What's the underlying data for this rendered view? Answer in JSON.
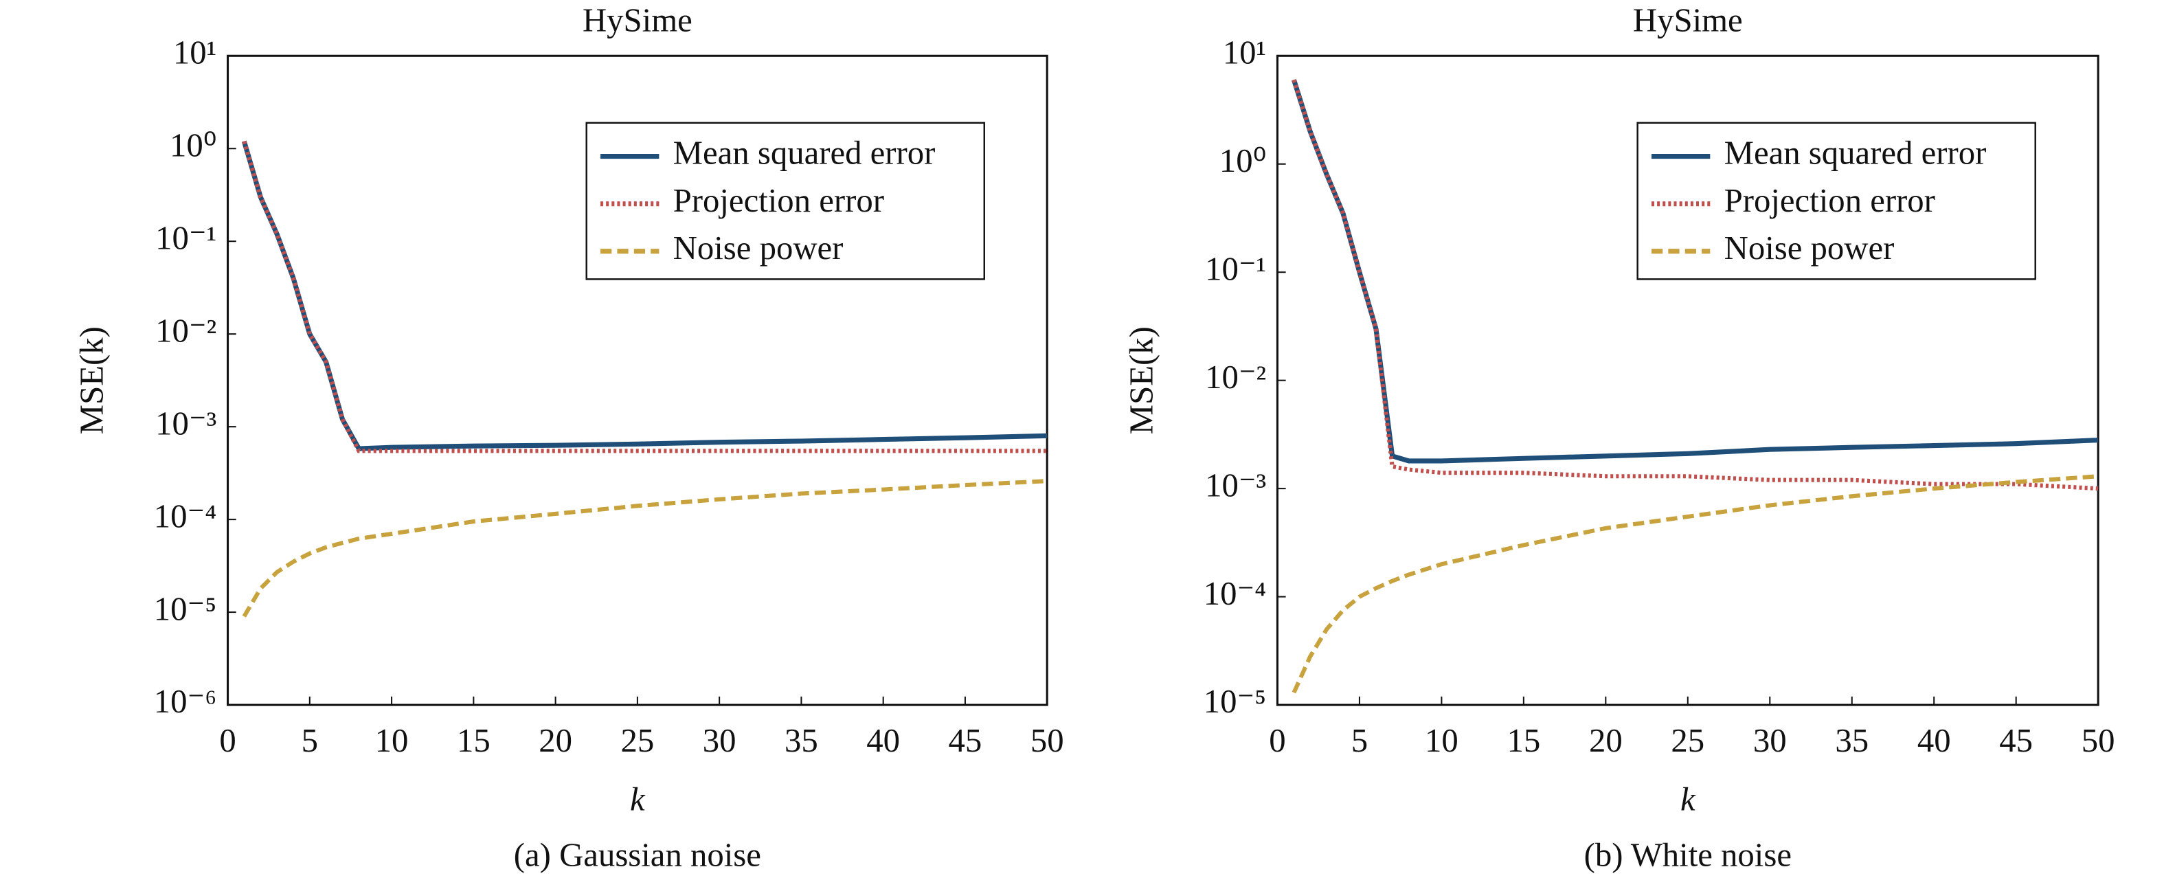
{
  "chart_data": [
    {
      "type": "line",
      "title": "HySime",
      "xlabel": "k",
      "ylabel": "MSE(k)",
      "caption": "(a) Gaussian noise",
      "log_y": true,
      "legend": "upper right",
      "x": [
        1,
        2,
        3,
        4,
        5,
        6,
        7,
        8,
        10,
        15,
        20,
        25,
        30,
        35,
        40,
        45,
        50
      ],
      "xlim": [
        0,
        50
      ],
      "xticks": [
        0,
        5,
        10,
        15,
        20,
        25,
        30,
        35,
        40,
        45,
        50
      ],
      "ylim": [
        1e-06,
        10
      ],
      "yticks": [
        {
          "value": 1e-06,
          "label": "10⁻⁶"
        },
        {
          "value": 1e-05,
          "label": "10⁻⁵"
        },
        {
          "value": 0.0001,
          "label": "10⁻⁴"
        },
        {
          "value": 0.001,
          "label": "10⁻³"
        },
        {
          "value": 0.01,
          "label": "10⁻²"
        },
        {
          "value": 0.1,
          "label": "10⁻¹"
        },
        {
          "value": 1,
          "label": "10⁰"
        },
        {
          "value": 10,
          "label": "10¹"
        }
      ],
      "series": [
        {
          "name": "Mean squared error",
          "color": "#1f4e79",
          "style": "solid",
          "values": [
            1.2,
            0.3,
            0.12,
            0.04,
            0.01,
            0.005,
            0.0012,
            0.00058,
            0.0006,
            0.00062,
            0.00063,
            0.00065,
            0.00068,
            0.0007,
            0.00073,
            0.00076,
            0.0008
          ]
        },
        {
          "name": "Projection error",
          "color": "#c0504d",
          "style": "dotted",
          "values": [
            1.2,
            0.3,
            0.12,
            0.04,
            0.01,
            0.005,
            0.0012,
            0.00055,
            0.00055,
            0.00055,
            0.00055,
            0.00055,
            0.00055,
            0.00055,
            0.00055,
            0.00055,
            0.00055
          ]
        },
        {
          "name": "Noise power",
          "color": "#c8a23c",
          "style": "dashed",
          "values": [
            9e-06,
            1.8e-05,
            2.7e-05,
            3.5e-05,
            4.3e-05,
            5e-05,
            5.6e-05,
            6.2e-05,
            7e-05,
            9.5e-05,
            0.000115,
            0.00014,
            0.000165,
            0.00019,
            0.00021,
            0.000235,
            0.00026
          ]
        }
      ]
    },
    {
      "type": "line",
      "title": "HySime",
      "xlabel": "k",
      "ylabel": "MSE(k)",
      "caption": "(b) White noise",
      "log_y": true,
      "legend": "upper right",
      "x": [
        1,
        2,
        3,
        4,
        5,
        6,
        7,
        8,
        10,
        15,
        20,
        25,
        30,
        35,
        40,
        45,
        50
      ],
      "xlim": [
        0,
        50
      ],
      "xticks": [
        0,
        5,
        10,
        15,
        20,
        25,
        30,
        35,
        40,
        45,
        50
      ],
      "ylim": [
        1e-05,
        10
      ],
      "yticks": [
        {
          "value": 1e-05,
          "label": "10⁻⁵"
        },
        {
          "value": 0.0001,
          "label": "10⁻⁴"
        },
        {
          "value": 0.001,
          "label": "10⁻³"
        },
        {
          "value": 0.01,
          "label": "10⁻²"
        },
        {
          "value": 0.1,
          "label": "10⁻¹"
        },
        {
          "value": 1,
          "label": "10⁰"
        },
        {
          "value": 10,
          "label": "10¹"
        }
      ],
      "series": [
        {
          "name": "Mean squared error",
          "color": "#1f4e79",
          "style": "solid",
          "values": [
            6,
            2,
            0.8,
            0.35,
            0.1,
            0.03,
            0.002,
            0.0018,
            0.0018,
            0.0019,
            0.002,
            0.0021,
            0.0023,
            0.0024,
            0.0025,
            0.0026,
            0.0028
          ]
        },
        {
          "name": "Projection error",
          "color": "#c0504d",
          "style": "dotted",
          "values": [
            6,
            2,
            0.8,
            0.35,
            0.1,
            0.03,
            0.0016,
            0.0015,
            0.0014,
            0.0014,
            0.0013,
            0.0013,
            0.0012,
            0.0012,
            0.0011,
            0.0011,
            0.001
          ]
        },
        {
          "name": "Noise power",
          "color": "#c8a23c",
          "style": "dashed",
          "values": [
            1.3e-05,
            2.8e-05,
            5e-05,
            7.5e-05,
            0.0001,
            0.00012,
            0.00014,
            0.00016,
            0.0002,
            0.0003,
            0.00043,
            0.00055,
            0.0007,
            0.00085,
            0.001,
            0.00115,
            0.0013
          ]
        }
      ]
    }
  ]
}
